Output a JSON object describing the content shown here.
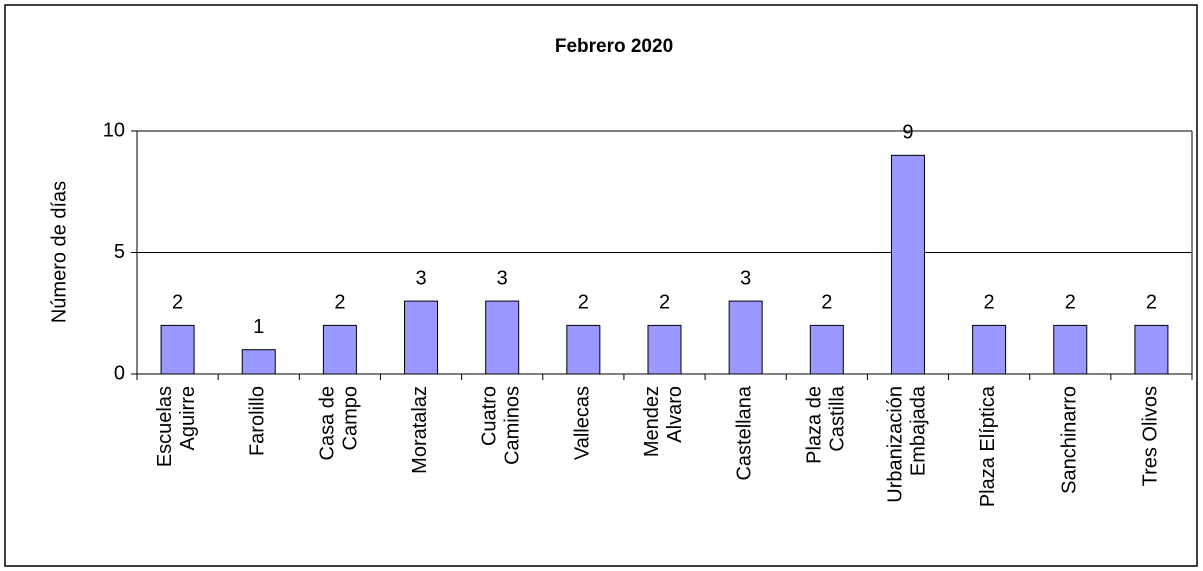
{
  "chart_data": {
    "type": "bar",
    "title": "Febrero  2020",
    "y_label": "Número de días",
    "categories": [
      [
        "Escuelas",
        "Aguirre"
      ],
      [
        "Farolillo"
      ],
      [
        "Casa de",
        "Campo"
      ],
      [
        "Moratalaz"
      ],
      [
        "Cuatro",
        "Caminos"
      ],
      [
        "Vallecas"
      ],
      [
        "Mendez",
        "Alvaro"
      ],
      [
        "Castellana"
      ],
      [
        "Plaza de",
        "Castilla"
      ],
      [
        "Urbanización",
        "Embajada"
      ],
      [
        "Plaza Elíptica"
      ],
      [
        "Sanchinarro"
      ],
      [
        "Tres Olivos"
      ]
    ],
    "values": [
      2,
      1,
      2,
      3,
      3,
      2,
      2,
      3,
      2,
      9,
      2,
      2,
      2
    ],
    "color": "#9999ff",
    "ylim": [
      0,
      10
    ],
    "yticks": [
      0,
      5,
      10
    ],
    "grid": true
  }
}
